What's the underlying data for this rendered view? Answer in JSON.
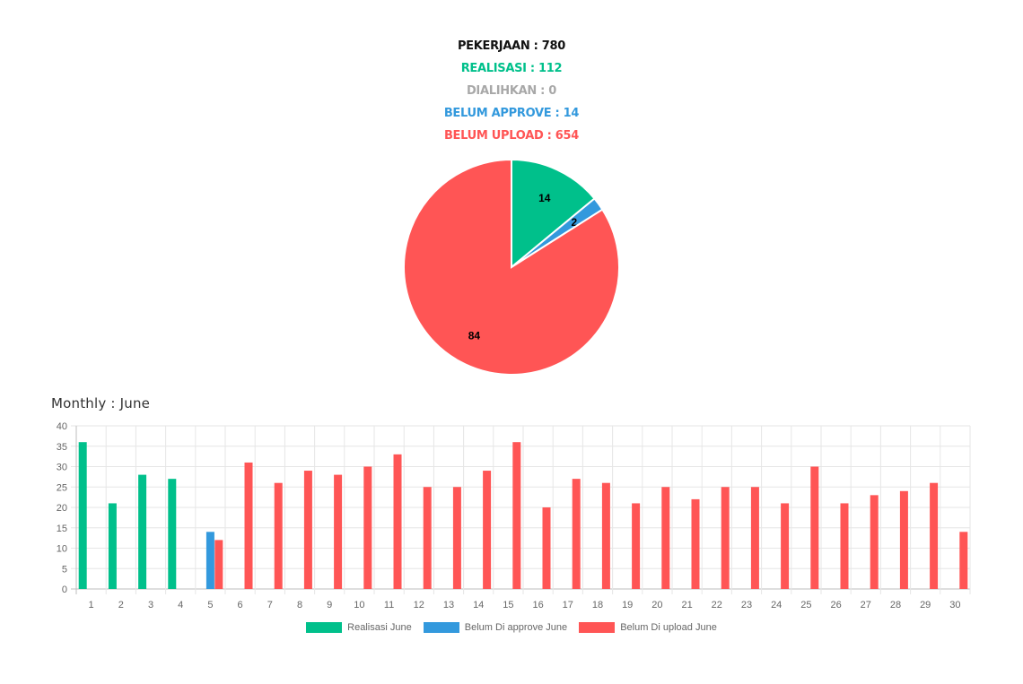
{
  "summary": {
    "pekerjaan": "PEKERJAAN : 780",
    "realisasi": "REALISASI : 112",
    "dialihkan": "DIALIHKAN : 0",
    "belum_approve": "BELUM APPROVE : 14",
    "belum_upload": "BELUM UPLOAD : 654"
  },
  "colors": {
    "black": "#111111",
    "green": "#00c08b",
    "gray": "#a8a8a8",
    "blue": "#3399dd",
    "red": "#ff5555"
  },
  "chart_data": [
    {
      "type": "pie",
      "slices": [
        {
          "value": 14,
          "label": "14",
          "color": "#00c08b"
        },
        {
          "value": 2,
          "label": "2",
          "color": "#3399dd"
        },
        {
          "value": 84,
          "label": "84",
          "color": "#ff5555"
        }
      ]
    },
    {
      "type": "bar",
      "title": "Monthly : June",
      "categories": [
        "1",
        "2",
        "3",
        "4",
        "5",
        "6",
        "7",
        "8",
        "9",
        "10",
        "11",
        "12",
        "13",
        "14",
        "15",
        "16",
        "17",
        "18",
        "19",
        "20",
        "21",
        "22",
        "23",
        "24",
        "25",
        "26",
        "27",
        "28",
        "29",
        "30"
      ],
      "series": [
        {
          "name": "Realisasi June",
          "color": "#00c08b",
          "values": [
            36,
            21,
            28,
            27,
            0,
            0,
            0,
            0,
            0,
            0,
            0,
            0,
            0,
            0,
            0,
            0,
            0,
            0,
            0,
            0,
            0,
            0,
            0,
            0,
            0,
            0,
            0,
            0,
            0,
            0
          ]
        },
        {
          "name": "Belum Di approve June",
          "color": "#3399dd",
          "values": [
            0,
            0,
            0,
            0,
            14,
            0,
            0,
            0,
            0,
            0,
            0,
            0,
            0,
            0,
            0,
            0,
            0,
            0,
            0,
            0,
            0,
            0,
            0,
            0,
            0,
            0,
            0,
            0,
            0,
            0
          ]
        },
        {
          "name": "Belum Di upload June",
          "color": "#ff5555",
          "values": [
            0,
            0,
            0,
            0,
            12,
            31,
            26,
            29,
            28,
            30,
            33,
            25,
            25,
            29,
            36,
            20,
            27,
            26,
            21,
            25,
            22,
            25,
            25,
            21,
            30,
            21,
            23,
            24,
            26,
            14
          ]
        }
      ],
      "yticks": [
        "0",
        "5",
        "10",
        "15",
        "20",
        "25",
        "30",
        "35",
        "40"
      ],
      "ylim": [
        0,
        40
      ],
      "grid": true,
      "legend": "bottom"
    }
  ]
}
